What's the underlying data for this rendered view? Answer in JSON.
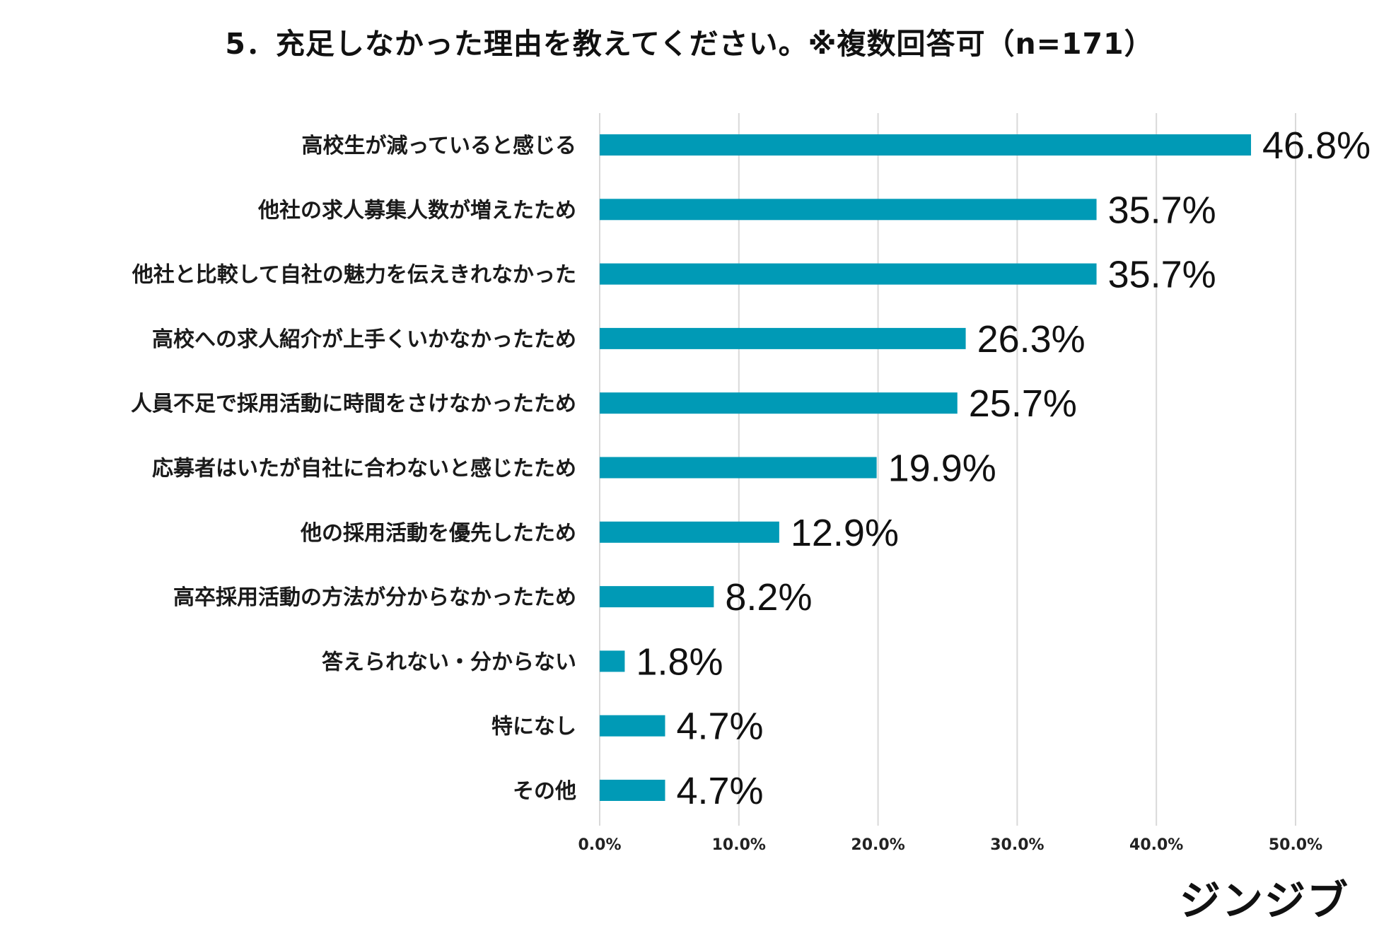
{
  "brand": {
    "logo_text": "ジンジブ"
  },
  "colors": {
    "bar": "#009ab6",
    "grid": "#d9d9d9",
    "text": "#111111"
  },
  "chart_data": {
    "type": "bar",
    "orientation": "horizontal",
    "title": "5．充足しなかった理由を教えてください。※複数回答可（n=171）",
    "categories": [
      "高校生が減っていると感じる",
      "他社の求人募集人数が増えたため",
      "他社と比較して自社の魅力を伝えきれなかった",
      "高校への求人紹介が上手くいかなかったため",
      "人員不足で採用活動に時間をさけなかったため",
      "応募者はいたが自社に合わないと感じたため",
      "他の採用活動を優先したため",
      "高卒採用活動の方法が分からなかったため",
      "答えられない・分からない",
      "特になし",
      "その他"
    ],
    "values": [
      46.8,
      35.7,
      35.7,
      26.3,
      25.7,
      19.9,
      12.9,
      8.2,
      1.8,
      4.7,
      4.7
    ],
    "value_labels": [
      "46.8%",
      "35.7%",
      "35.7%",
      "26.3%",
      "25.7%",
      "19.9%",
      "12.9%",
      "8.2%",
      "1.8%",
      "4.7%",
      "4.7%"
    ],
    "xlim": [
      0,
      50
    ],
    "ticks": [
      0,
      10,
      20,
      30,
      40,
      50
    ],
    "tick_labels": [
      "0.0%",
      "10.0%",
      "20.0%",
      "30.0%",
      "40.0%",
      "50.0%"
    ],
    "xlabel": "",
    "ylabel": "",
    "grid": true,
    "legend": false
  }
}
